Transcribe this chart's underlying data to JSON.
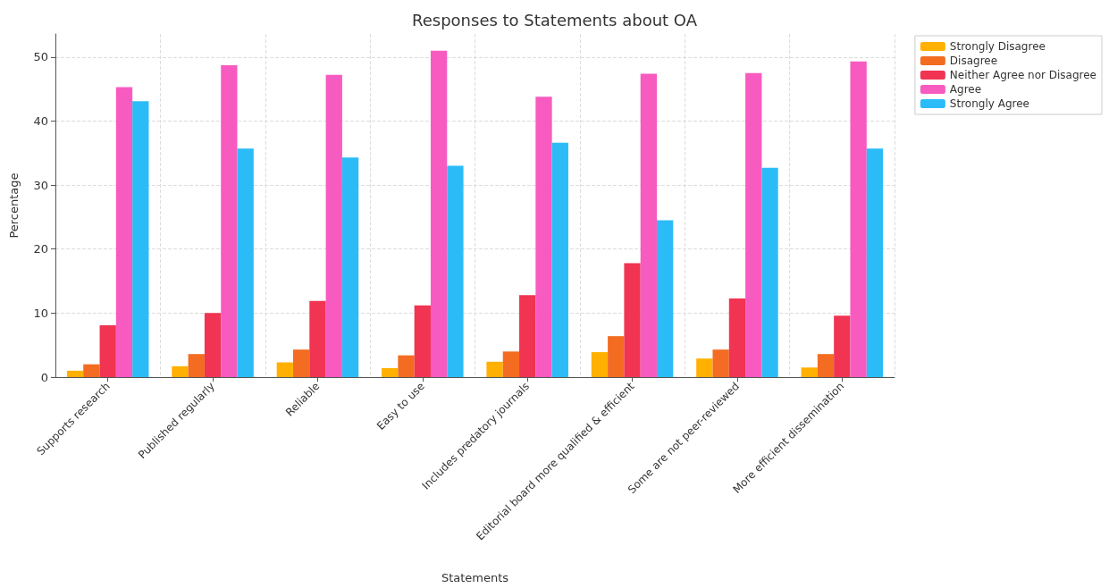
{
  "chart_data": {
    "type": "bar",
    "title": "Responses to Statements about OA",
    "xlabel": "Statements",
    "ylabel": "Percentage",
    "categories": [
      "Supports research",
      "Published regularly",
      "Reliable",
      "Easy to use",
      "Includes predatory journals",
      "Editorial board more qualified & efficient",
      "Some are not peer-reviewed",
      "More efficient dissemination"
    ],
    "series": [
      {
        "name": "Strongly Disagree",
        "color": "#ffb000",
        "values": [
          1.0,
          1.7,
          2.3,
          1.4,
          2.4,
          3.9,
          2.9,
          1.5
        ]
      },
      {
        "name": "Disagree",
        "color": "#f36c21",
        "values": [
          2.0,
          3.6,
          4.3,
          3.4,
          4.0,
          6.4,
          4.3,
          3.6
        ]
      },
      {
        "name": "Neither Agree nor Disagree",
        "color": "#f03452",
        "values": [
          8.1,
          10.0,
          11.9,
          11.2,
          12.8,
          17.8,
          12.3,
          9.6
        ]
      },
      {
        "name": "Agree",
        "color": "#f85bc0",
        "values": [
          45.3,
          48.7,
          47.2,
          51.0,
          43.8,
          47.4,
          47.5,
          49.3
        ]
      },
      {
        "name": "Strongly Agree",
        "color": "#2bbcf8",
        "values": [
          43.1,
          35.7,
          34.3,
          33.0,
          36.6,
          24.5,
          32.7,
          35.7
        ]
      }
    ],
    "ylim": [
      0,
      53.6
    ],
    "yticks": [
      0,
      10,
      20,
      30,
      40,
      50
    ],
    "grid": true,
    "legend": "top right"
  }
}
